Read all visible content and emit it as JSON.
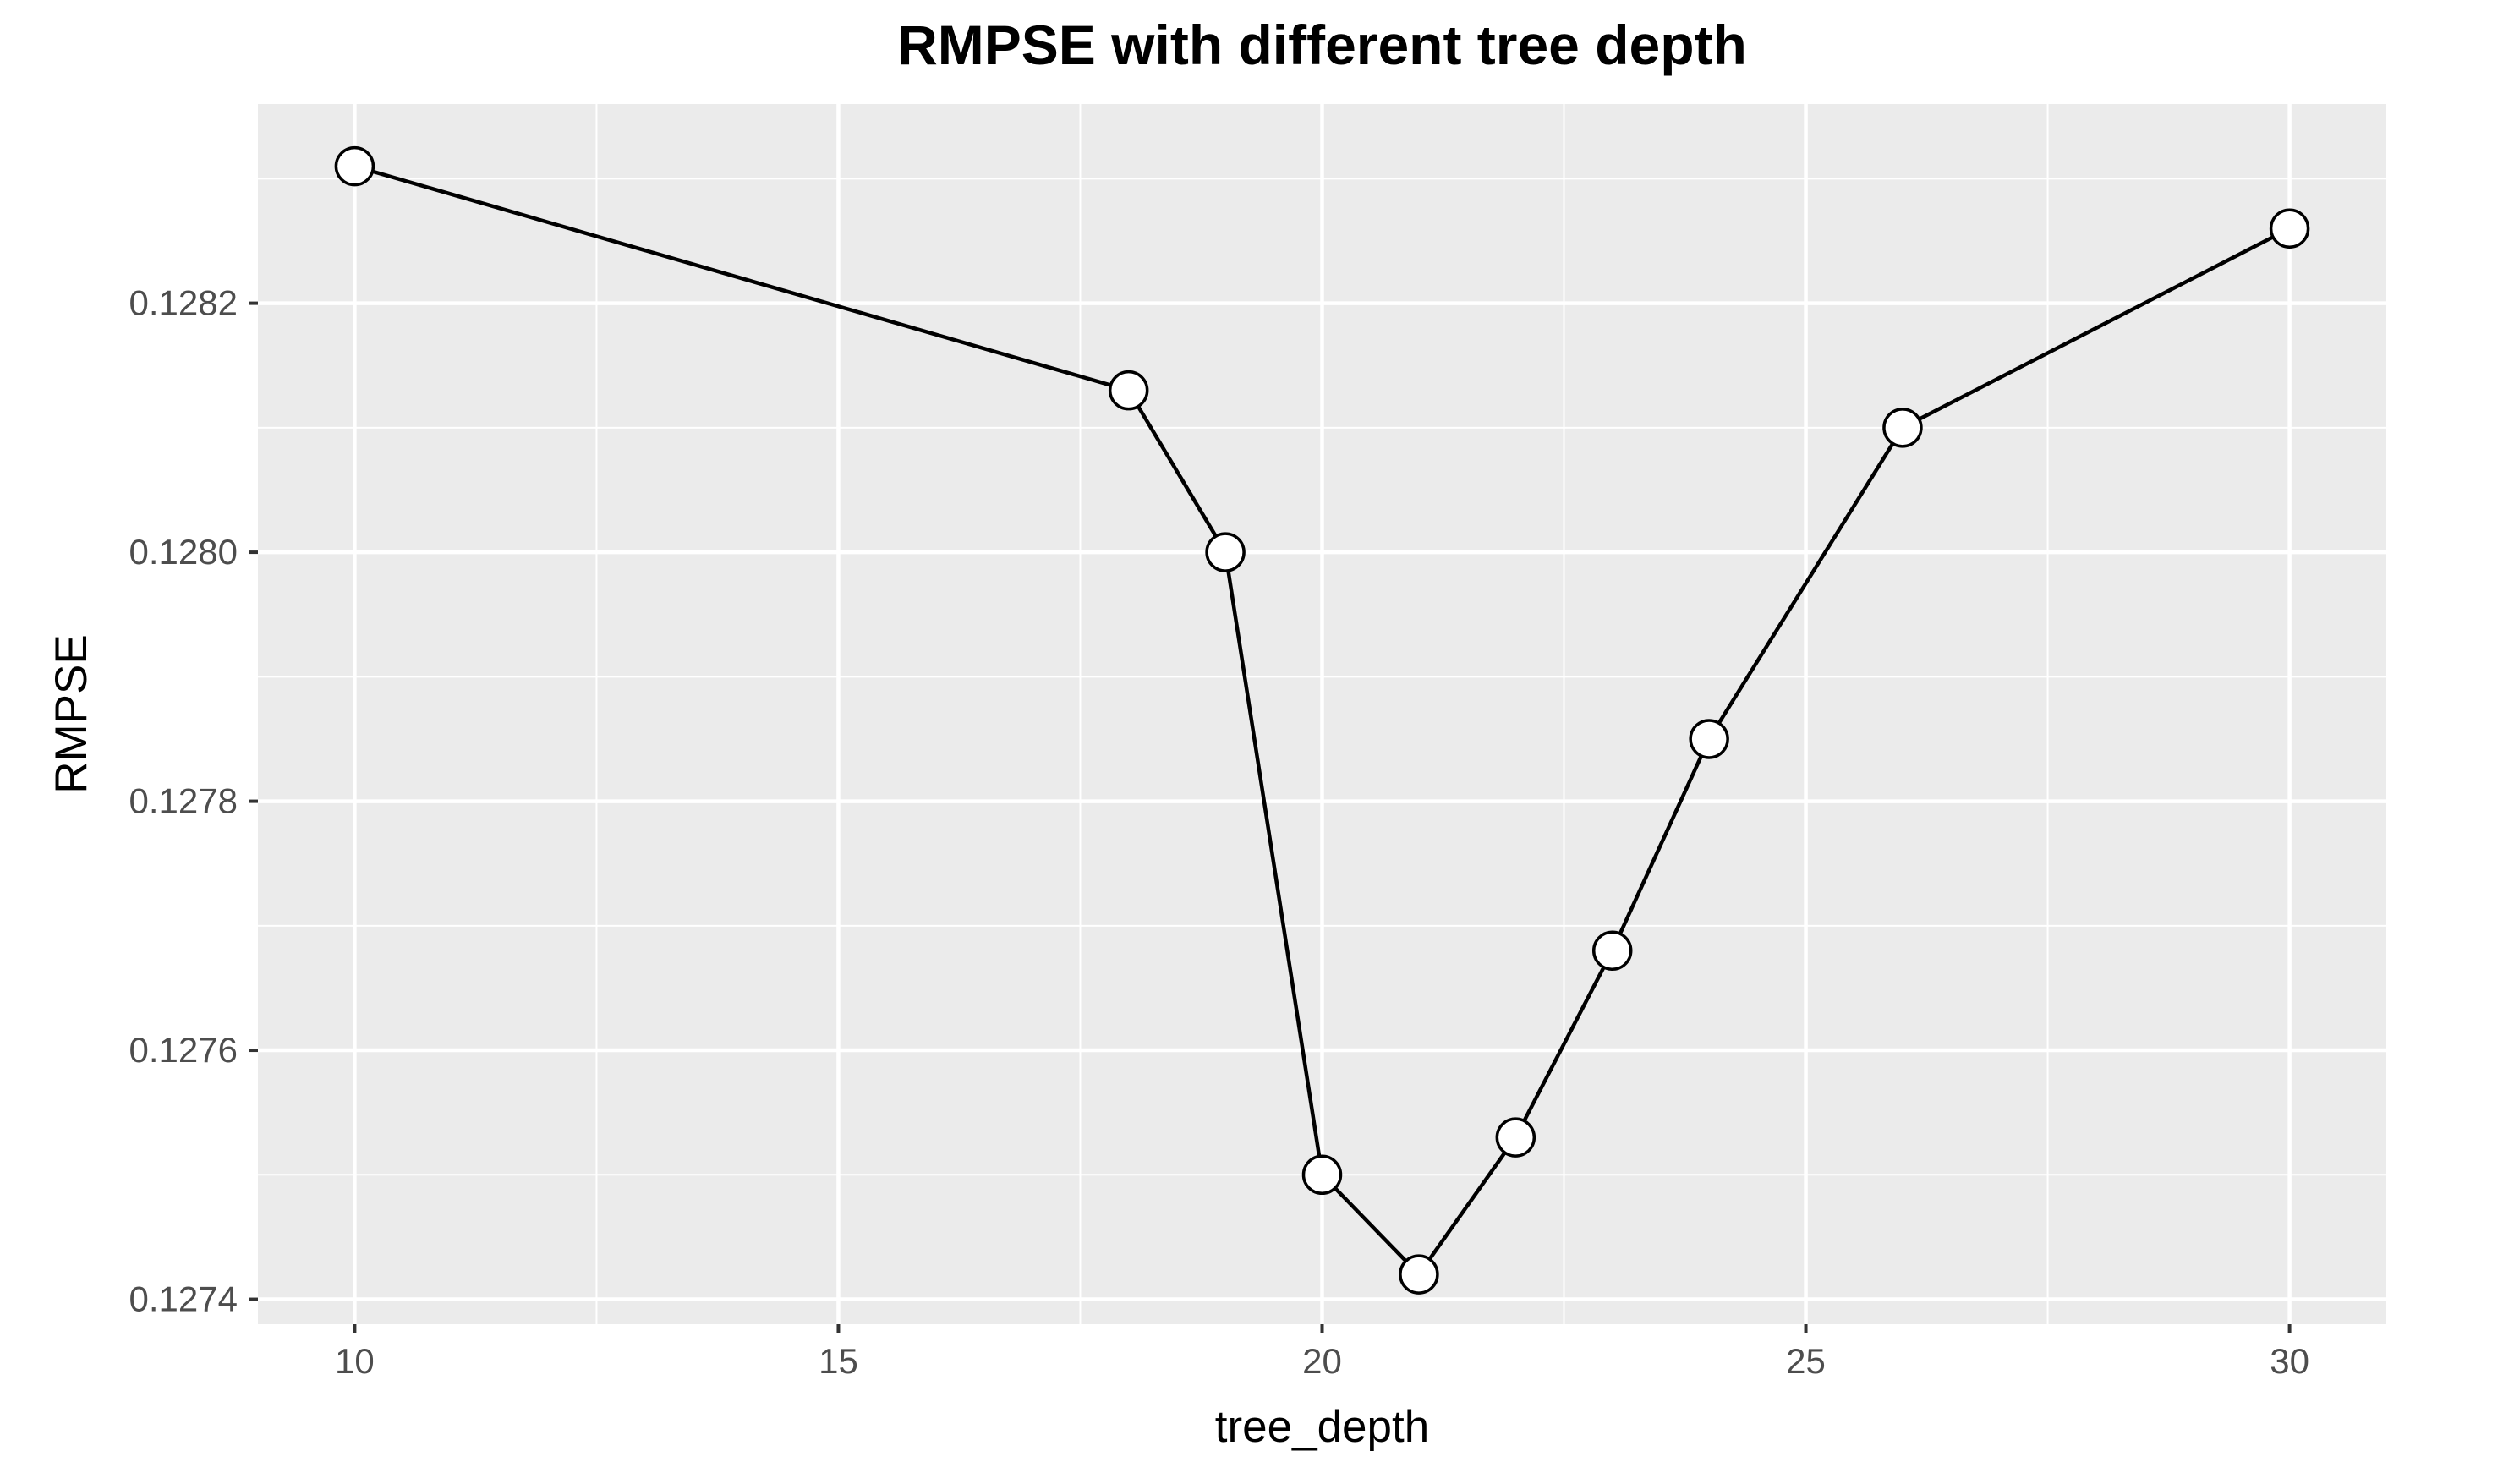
{
  "chart_data": {
    "type": "line",
    "title": "RMPSE with different tree depth",
    "xlabel": "tree_depth",
    "ylabel": "RMPSE",
    "x": [
      10,
      18,
      19,
      20,
      21,
      22,
      23,
      24,
      26,
      30
    ],
    "series": [
      {
        "values": [
          0.12831,
          0.12813,
          0.128,
          0.1275,
          0.12742,
          0.12753,
          0.12768,
          0.12785,
          0.1281,
          0.12826
        ]
      }
    ],
    "xlim": [
      9,
      31
    ],
    "ylim": [
      0.12738,
      0.12836
    ],
    "xticks": [
      10,
      15,
      20,
      25,
      30
    ],
    "xtick_labels": [
      "10",
      "15",
      "20",
      "25",
      "30"
    ],
    "yticks": [
      0.1274,
      0.1276,
      0.1278,
      0.128,
      0.1282
    ],
    "ytick_labels": [
      "0.1274",
      "0.1276",
      "0.1278",
      "0.1280",
      "0.1282"
    ],
    "grid": true,
    "colors": {
      "panel": "#ebebeb",
      "grid": "#ffffff",
      "line": "#000000",
      "marker_fill": "#ffffff",
      "marker_stroke": "#000000"
    }
  }
}
